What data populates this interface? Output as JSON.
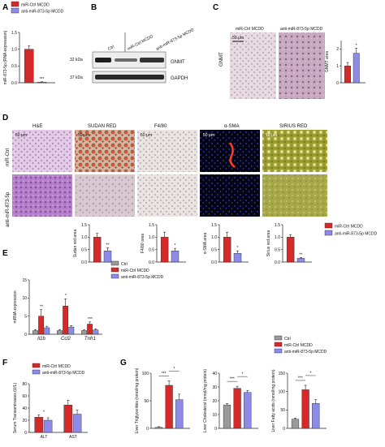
{
  "colors": {
    "red": "#d42a2a",
    "blue": "#8c8ce8",
    "gray": "#9a9a9a",
    "axis": "#222222"
  },
  "panels": {
    "a": "A",
    "b": "B",
    "c": "C",
    "d": "D",
    "e": "E",
    "f": "F",
    "g": "G"
  },
  "legend_ab": {
    "ctrl": "miR-Ctrl MCDD",
    "anti": "anti-miR-873-5p MCDD"
  },
  "legend_d": {
    "ctrl": "miR-Ctrl MCDD",
    "anti": "anti-miR-873-5p MCDD"
  },
  "legend_e": {
    "ctrl": "Ctrl",
    "mir": "miR-Ctrl MCDD",
    "anti": "anti-miR-873-5p MCDD"
  },
  "legend_f": {
    "ctrl": "miR-Ctrl MCDD",
    "anti": "anti-miR-873-5p MCDD"
  },
  "legend_g": {
    "ctrl": "Ctrl",
    "mir": "miR-Ctrl MCDD",
    "anti": "anti-miR-873-5p MCDD"
  },
  "blot": {
    "col_ctrl": "Ctrl",
    "col_mir": "miR-Ctrl MCDD",
    "col_anti": "anti-miR-873-5p MCDD",
    "kda32": "32 kDa",
    "kda37": "37 kDa",
    "gnmt": "GNMT",
    "gapdh": "GAPDH"
  },
  "panel_c": {
    "ylabel": "GNMT",
    "col_ctrl": "miR-Ctrl MCDD",
    "col_anti": "anti-miR-873-5p MCDD",
    "scale": "50 μm"
  },
  "panel_d": {
    "stains": [
      "H&E",
      "SUDAN RED",
      "F4/80",
      "α-SMA",
      "SIRIUS RED"
    ],
    "row_ctrl": "miR-Ctrl",
    "row_anti": "anti-miR-873-5p",
    "scale": "50 μm"
  },
  "chart_data": [
    {
      "id": "A",
      "type": "bar",
      "ylabel": "miR-873-5p (RNA expression)",
      "categories": [
        "miR-Ctrl MCDD",
        "anti-miR-873-5p MCDD"
      ],
      "values": [
        1.0,
        0.02
      ],
      "errors": [
        0.1,
        0.01
      ],
      "ylim": [
        0,
        1.5
      ],
      "yticks": [
        "0.0",
        "0.5",
        "1.0",
        "1.5"
      ],
      "sig": "***"
    },
    {
      "id": "C",
      "type": "bar",
      "ylabel": "GNMT area",
      "categories": [
        "miR-Ctrl MCDD",
        "anti-miR-873-5p MCDD"
      ],
      "values": [
        1.0,
        1.75
      ],
      "errors": [
        0.2,
        0.3
      ],
      "ylim": [
        0,
        2.5
      ],
      "yticks": [
        "0",
        "1",
        "2"
      ],
      "sig": "*"
    },
    {
      "id": "D-sudan",
      "type": "bar",
      "ylabel": "Sudan red area",
      "categories": [
        "miR-Ctrl MCDD",
        "anti-miR-873-5p MCDD"
      ],
      "values": [
        1.0,
        0.45
      ],
      "errors": [
        0.15,
        0.12
      ],
      "ylim": [
        0,
        1.5
      ],
      "yticks": [
        "0.0",
        "0.5",
        "1.0",
        "1.5"
      ],
      "sig": "**"
    },
    {
      "id": "D-f480",
      "type": "bar",
      "ylabel": "F4/80 area",
      "categories": [
        "miR-Ctrl MCDD",
        "anti-miR-873-5p MCDD"
      ],
      "values": [
        1.0,
        0.45
      ],
      "errors": [
        0.2,
        0.1
      ],
      "ylim": [
        0,
        1.5
      ],
      "yticks": [
        "0.0",
        "0.5",
        "1.0",
        "1.5"
      ],
      "sig": "*"
    },
    {
      "id": "D-sma",
      "type": "bar",
      "ylabel": "α-SMA area",
      "categories": [
        "miR-Ctrl MCDD",
        "anti-miR-873-5p MCDD"
      ],
      "values": [
        1.0,
        0.35
      ],
      "errors": [
        0.2,
        0.1
      ],
      "ylim": [
        0,
        1.5
      ],
      "yticks": [
        "0.0",
        "0.5",
        "1.0",
        "1.5"
      ],
      "sig": "*"
    },
    {
      "id": "D-sirius",
      "type": "bar",
      "ylabel": "Sirius red area",
      "categories": [
        "miR-Ctrl MCDD",
        "anti-miR-873-5p MCDD"
      ],
      "values": [
        1.0,
        0.15
      ],
      "errors": [
        0.1,
        0.03
      ],
      "ylim": [
        0,
        1.5
      ],
      "yticks": [
        "0.0",
        "0.5",
        "1.0",
        "1.5"
      ],
      "sig": "**"
    },
    {
      "id": "E",
      "type": "bar",
      "ylabel": "mRNA expression",
      "categories": [
        "Il1b",
        "Ccl2",
        "Tnfr1"
      ],
      "series": [
        {
          "name": "Ctrl",
          "values": [
            1.0,
            1.0,
            1.0
          ],
          "errors": [
            0.3,
            0.3,
            0.2
          ]
        },
        {
          "name": "miR-Ctrl MCDD",
          "values": [
            5.0,
            7.8,
            2.8
          ],
          "errors": [
            1.8,
            2.0,
            0.6
          ]
        },
        {
          "name": "anti-miR-873-5p MCDD",
          "values": [
            1.8,
            2.0,
            1.2
          ],
          "errors": [
            0.4,
            0.4,
            0.3
          ]
        }
      ],
      "ylim": [
        0,
        15
      ],
      "yticks": [
        "0",
        "5",
        "10",
        "15"
      ],
      "sig": [
        "**",
        "*",
        "***"
      ]
    },
    {
      "id": "F",
      "type": "bar",
      "ylabel": "Serum Transaminases (U/L)",
      "categories": [
        "ALT",
        "AST"
      ],
      "series": [
        {
          "name": "miR-Ctrl MCDD",
          "values": [
            25,
            45
          ],
          "errors": [
            4,
            8
          ]
        },
        {
          "name": "anti-miR-873-5p MCDD",
          "values": [
            20,
            30
          ],
          "errors": [
            4,
            7
          ]
        }
      ],
      "ylim": [
        0,
        80
      ],
      "yticks": [
        "0",
        "20",
        "40",
        "60",
        "80"
      ],
      "sig": [
        "*",
        ""
      ]
    },
    {
      "id": "G-tg",
      "type": "bar",
      "ylabel": "Liver Triglycerides (nmol/mg protein)",
      "categories": [
        "Ctrl",
        "miR-Ctrl MCDD",
        "anti-miR-873-5p MCDD"
      ],
      "values": [
        2,
        78,
        52
      ],
      "errors": [
        1,
        8,
        10
      ],
      "ylim": [
        0,
        100
      ],
      "yticks": [
        "0",
        "50",
        "100"
      ],
      "sig": [
        "***",
        "*"
      ]
    },
    {
      "id": "G-chol",
      "type": "bar",
      "ylabel": "Liver Cholesterol (nmol/mg protein)",
      "categories": [
        "Ctrl",
        "miR-Ctrl MCDD",
        "anti-miR-873-5p MCDD"
      ],
      "values": [
        17,
        29,
        26
      ],
      "errors": [
        1,
        1.5,
        1.5
      ],
      "ylim": [
        0,
        40
      ],
      "yticks": [
        "0",
        "10",
        "20",
        "30",
        "40"
      ],
      "sig": [
        "***",
        "*"
      ]
    },
    {
      "id": "G-fa",
      "type": "bar",
      "ylabel": "Liver Fatty acids (nmol/mg protein)",
      "categories": [
        "Ctrl",
        "miR-Ctrl MCDD",
        "anti-miR-873-5p MCDD"
      ],
      "values": [
        25,
        105,
        68
      ],
      "errors": [
        3,
        12,
        10
      ],
      "ylim": [
        0,
        150
      ],
      "yticks": [
        "0",
        "50",
        "100",
        "150"
      ],
      "sig": [
        "***",
        "*"
      ]
    }
  ]
}
